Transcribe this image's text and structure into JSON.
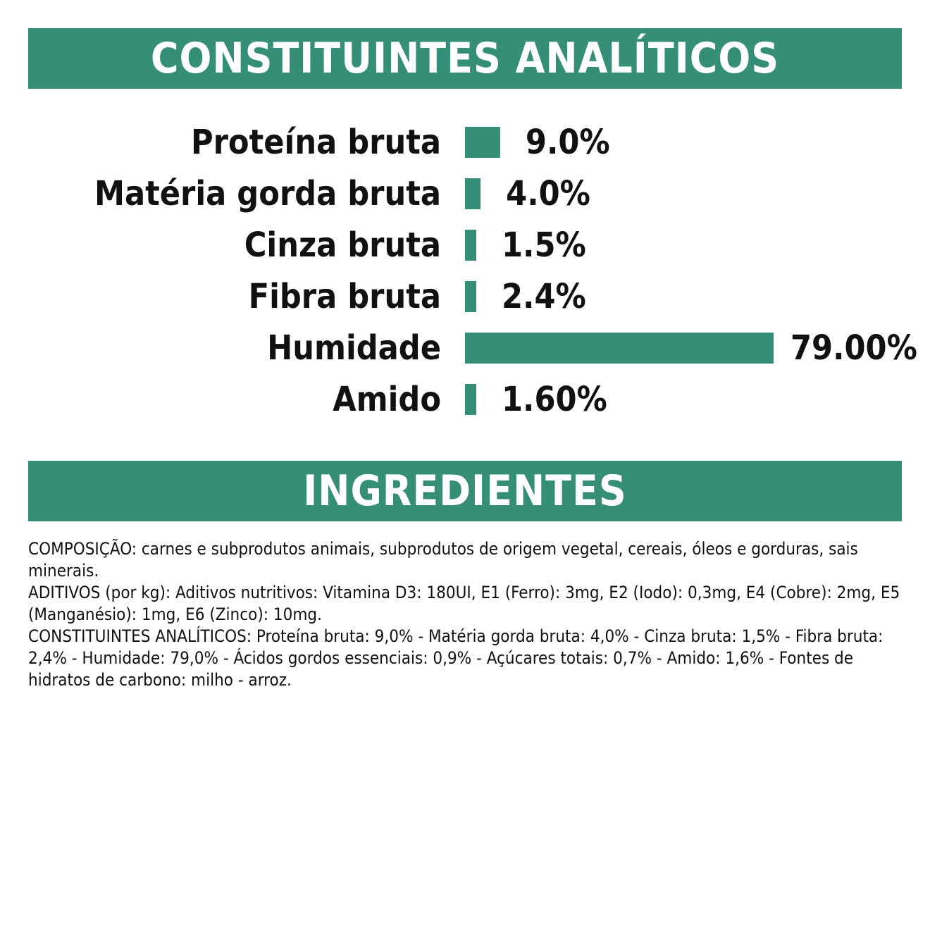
{
  "colors": {
    "accent": "#358F77",
    "text": "#111111",
    "background": "#ffffff"
  },
  "header_analytical": "CONSTITUINTES ANALÍTICOS",
  "header_ingredients": "INGREDIENTES",
  "chart_data": {
    "type": "bar",
    "orientation": "horizontal",
    "xlim": [
      0,
      79
    ],
    "categories": [
      "Proteína bruta",
      "Matéria gorda bruta",
      "Cinza bruta",
      "Fibra bruta",
      "Humidade",
      "Amido"
    ],
    "values": [
      9.0,
      4.0,
      1.5,
      2.4,
      79.0,
      1.6
    ],
    "value_labels": [
      "9.0%",
      "4.0%",
      "1.5%",
      "2.4%",
      "79.00%",
      "1.60%"
    ]
  },
  "ingredients": {
    "paragraphs": [
      "COMPOSIÇÃO: carnes e subprodutos animais, subprodutos de origem vegetal, cereais, óleos e gorduras, sais minerais.",
      "ADITIVOS (por kg): Aditivos nutritivos: Vitamina D3: 180UI, E1 (Ferro): 3mg, E2 (Iodo): 0,3mg, E4 (Cobre): 2mg, E5 (Manganésio): 1mg, E6 (Zinco): 10mg.",
      "CONSTITUINTES ANALÍTICOS: Proteína bruta: 9,0% - Matéria gorda bruta: 4,0% - Cinza bruta: 1,5% - Fibra bruta: 2,4% - Humidade: 79,0% - Ácidos gordos essenciais: 0,9% - Açúcares totais: 0,7% - Amido: 1,6% - Fontes de hidratos de carbono: milho - arroz."
    ]
  }
}
